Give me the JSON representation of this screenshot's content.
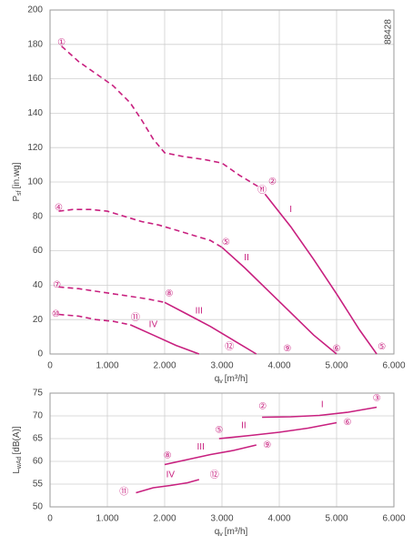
{
  "chart_data": [
    {
      "type": "line",
      "code": "88428",
      "ylabel": {
        "main": "P",
        "sub": "sf",
        "unit": "[in.wg]"
      },
      "xlabel": {
        "main": "q",
        "sub": "v",
        "unit": "[m³/h]"
      },
      "xlim": [
        0,
        6000
      ],
      "ylim": [
        0,
        200
      ],
      "grid": true,
      "color": "#c8207f",
      "xticks": [
        0,
        {
          "value": 1000,
          "label": "1.000"
        },
        {
          "value": 2000,
          "label": "2.000"
        },
        {
          "value": 3000,
          "label": "3.000"
        },
        {
          "value": 4000,
          "label": "4.000"
        },
        {
          "value": 5000,
          "label": "5.000"
        },
        {
          "value": 6000,
          "label": "6.000"
        }
      ],
      "yticks": [
        0,
        20,
        40,
        60,
        80,
        100,
        120,
        140,
        160,
        180,
        200
      ],
      "series": [
        {
          "style": "dashed",
          "x": [
            200,
            500,
            800,
            1100,
            1400,
            1600,
            1800,
            2000,
            2300,
            2700,
            3000,
            3300,
            3700
          ],
          "values": [
            179,
            170,
            163,
            156,
            146,
            136,
            125,
            117,
            115,
            113,
            111,
            104,
            96
          ]
        },
        {
          "style": "solid",
          "x": [
            3750,
            4200,
            4600,
            5000,
            5400,
            5700
          ],
          "values": [
            93,
            74,
            55,
            35,
            14,
            0
          ]
        },
        {
          "style": "dashed",
          "x": [
            150,
            400,
            700,
            1000,
            1300,
            1600,
            1900,
            2200,
            2500,
            2800,
            3000
          ],
          "values": [
            83,
            84,
            84,
            83,
            80,
            77,
            75,
            72,
            69,
            66,
            62
          ]
        },
        {
          "style": "solid",
          "x": [
            3000,
            3400,
            3800,
            4200,
            4600,
            5000
          ],
          "values": [
            62,
            50,
            37,
            24,
            11,
            0
          ]
        },
        {
          "style": "dashed",
          "x": [
            150,
            500,
            900,
            1300,
            1700,
            2000
          ],
          "values": [
            39,
            38,
            36,
            34,
            32,
            30
          ]
        },
        {
          "style": "solid",
          "x": [
            2000,
            2400,
            2800,
            3200,
            3600
          ],
          "values": [
            30,
            23,
            16,
            8,
            0
          ]
        },
        {
          "style": "dashed",
          "x": [
            150,
            500,
            800,
            1100,
            1400
          ],
          "values": [
            23,
            22,
            20,
            19,
            17
          ]
        },
        {
          "style": "solid",
          "x": [
            1400,
            1800,
            2200,
            2600
          ],
          "values": [
            17,
            11,
            5,
            0
          ]
        }
      ],
      "annotations": [
        {
          "text": "①",
          "x": 200,
          "y": 181
        },
        {
          "text": "②",
          "x": 3880,
          "y": 100
        },
        {
          "text": "⑪",
          "x": 3700,
          "y": 95
        },
        {
          "text": "I",
          "x": 4200,
          "y": 84
        },
        {
          "text": "④",
          "x": 150,
          "y": 85
        },
        {
          "text": "⑤",
          "x": 3070,
          "y": 65
        },
        {
          "text": "II",
          "x": 3430,
          "y": 56
        },
        {
          "text": "⑦",
          "x": 120,
          "y": 40
        },
        {
          "text": "⑧",
          "x": 2080,
          "y": 35
        },
        {
          "text": "III",
          "x": 2600,
          "y": 25
        },
        {
          "text": "⑩",
          "x": 100,
          "y": 23
        },
        {
          "text": "⑪",
          "x": 1490,
          "y": 21
        },
        {
          "text": "IV",
          "x": 1800,
          "y": 17
        },
        {
          "text": "⑫",
          "x": 3130,
          "y": 4
        },
        {
          "text": "⑨",
          "x": 4140,
          "y": 3
        },
        {
          "text": "⑥",
          "x": 5000,
          "y": 3
        },
        {
          "text": "⑤",
          "x": 5790,
          "y": 4
        }
      ]
    },
    {
      "type": "line",
      "ylabel": {
        "main": "L",
        "sub": "wAd",
        "unit": "[dB(A)]"
      },
      "xlabel": {
        "main": "q",
        "sub": "v",
        "unit": "[m³/h]"
      },
      "xlim": [
        0,
        6000
      ],
      "ylim": [
        50,
        75
      ],
      "grid": true,
      "color": "#c8207f",
      "xticks": [
        0,
        {
          "value": 1000,
          "label": "1.000"
        },
        {
          "value": 2000,
          "label": "2.000"
        },
        {
          "value": 3000,
          "label": "3.000"
        },
        {
          "value": 4000,
          "label": "4.000"
        },
        {
          "value": 5000,
          "label": "5.000"
        },
        {
          "value": 6000,
          "label": "6.000"
        }
      ],
      "yticks": [
        50,
        55,
        60,
        65,
        70,
        75
      ],
      "series": [
        {
          "style": "solid",
          "x": [
            3700,
            4200,
            4700,
            5200,
            5700
          ],
          "values": [
            69.7,
            69.8,
            70.1,
            70.8,
            71.9
          ]
        },
        {
          "style": "solid",
          "x": [
            2950,
            3500,
            4000,
            4500,
            5000
          ],
          "values": [
            65,
            65.7,
            66.4,
            67.3,
            68.5
          ]
        },
        {
          "style": "solid",
          "x": [
            2000,
            2400,
            2800,
            3200,
            3600
          ],
          "values": [
            59.3,
            60.4,
            61.5,
            62.4,
            63.6
          ]
        },
        {
          "style": "solid",
          "x": [
            1500,
            1800,
            2100,
            2400,
            2600
          ],
          "values": [
            53.1,
            54.2,
            54.7,
            55.3,
            56
          ]
        }
      ],
      "annotations": [
        {
          "text": "②",
          "x": 3710,
          "y": 72
        },
        {
          "text": "I",
          "x": 4750,
          "y": 72.4
        },
        {
          "text": "③",
          "x": 5700,
          "y": 73.8
        },
        {
          "text": "⑥",
          "x": 5190,
          "y": 68.5
        },
        {
          "text": "⑤",
          "x": 2950,
          "y": 66.8
        },
        {
          "text": "II",
          "x": 3380,
          "y": 67.8
        },
        {
          "text": "⑧",
          "x": 2050,
          "y": 61.2
        },
        {
          "text": "III",
          "x": 2630,
          "y": 63.1
        },
        {
          "text": "⑨",
          "x": 3790,
          "y": 63.5
        },
        {
          "text": "⑫",
          "x": 2870,
          "y": 56.9
        },
        {
          "text": "IV",
          "x": 2100,
          "y": 57
        },
        {
          "text": "⑪",
          "x": 1290,
          "y": 53.2
        }
      ]
    }
  ]
}
